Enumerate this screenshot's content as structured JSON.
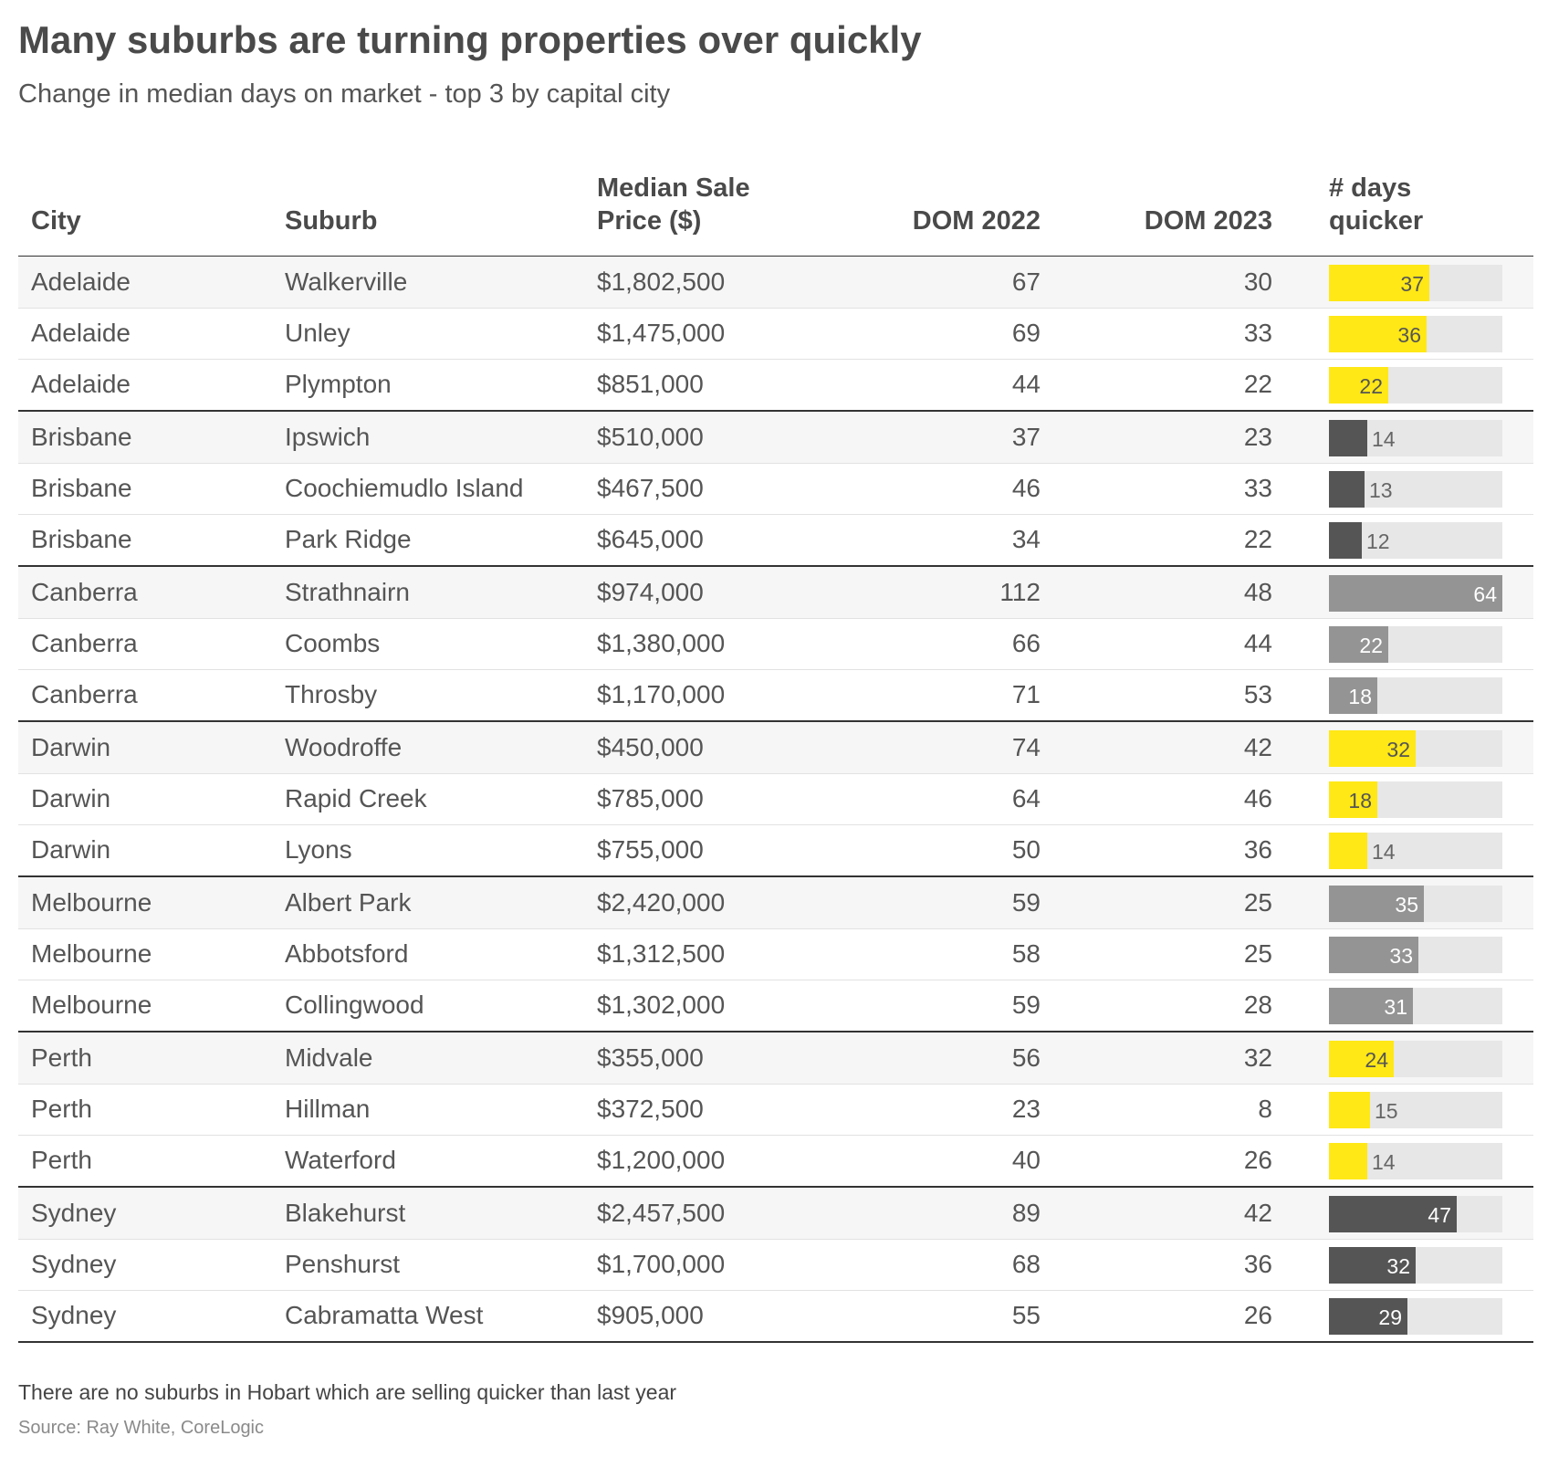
{
  "title": "Many suburbs are turning properties over quickly",
  "subtitle": "Change in median days on market - top 3 by capital city",
  "columns": {
    "city": "City",
    "suburb": "Suburb",
    "price_line1": "Median Sale",
    "price_line2": "Price ($)",
    "dom2022": "DOM 2022",
    "dom2023": "DOM 2023",
    "quicker_line1": "# days",
    "quicker_line2": "quicker"
  },
  "colors": {
    "Adelaide": "#ffe816",
    "Brisbane": "#555555",
    "Canberra": "#949494",
    "Darwin": "#ffe816",
    "Melbourne": "#949494",
    "Perth": "#ffe816",
    "Sydney": "#555555",
    "track": "#e7e7e7"
  },
  "note": "There are no suburbs in Hobart which are selling quicker than last year",
  "source": "Source: Ray White, CoreLogic",
  "chart_data": {
    "type": "table",
    "bar_column_max": 64,
    "rows": [
      {
        "city": "Adelaide",
        "suburb": "Walkerville",
        "price": "$1,802,500",
        "dom2022": "67",
        "dom2023": "30",
        "quicker": 37
      },
      {
        "city": "Adelaide",
        "suburb": "Unley",
        "price": "$1,475,000",
        "dom2022": "69",
        "dom2023": "33",
        "quicker": 36
      },
      {
        "city": "Adelaide",
        "suburb": "Plympton",
        "price": "$851,000",
        "dom2022": "44",
        "dom2023": "22",
        "quicker": 22
      },
      {
        "city": "Brisbane",
        "suburb": "Ipswich",
        "price": "$510,000",
        "dom2022": "37",
        "dom2023": "23",
        "quicker": 14
      },
      {
        "city": "Brisbane",
        "suburb": "Coochiemudlo Island",
        "price": "$467,500",
        "dom2022": "46",
        "dom2023": "33",
        "quicker": 13
      },
      {
        "city": "Brisbane",
        "suburb": "Park Ridge",
        "price": "$645,000",
        "dom2022": "34",
        "dom2023": "22",
        "quicker": 12
      },
      {
        "city": "Canberra",
        "suburb": "Strathnairn",
        "price": "$974,000",
        "dom2022": "112",
        "dom2023": "48",
        "quicker": 64
      },
      {
        "city": "Canberra",
        "suburb": "Coombs",
        "price": "$1,380,000",
        "dom2022": "66",
        "dom2023": "44",
        "quicker": 22
      },
      {
        "city": "Canberra",
        "suburb": "Throsby",
        "price": "$1,170,000",
        "dom2022": "71",
        "dom2023": "53",
        "quicker": 18
      },
      {
        "city": "Darwin",
        "suburb": "Woodroffe",
        "price": "$450,000",
        "dom2022": "74",
        "dom2023": "42",
        "quicker": 32
      },
      {
        "city": "Darwin",
        "suburb": "Rapid Creek",
        "price": "$785,000",
        "dom2022": "64",
        "dom2023": "46",
        "quicker": 18
      },
      {
        "city": "Darwin",
        "suburb": "Lyons",
        "price": "$755,000",
        "dom2022": "50",
        "dom2023": "36",
        "quicker": 14
      },
      {
        "city": "Melbourne",
        "suburb": "Albert Park",
        "price": "$2,420,000",
        "dom2022": "59",
        "dom2023": "25",
        "quicker": 35
      },
      {
        "city": "Melbourne",
        "suburb": "Abbotsford",
        "price": "$1,312,500",
        "dom2022": "58",
        "dom2023": "25",
        "quicker": 33
      },
      {
        "city": "Melbourne",
        "suburb": "Collingwood",
        "price": "$1,302,000",
        "dom2022": "59",
        "dom2023": "28",
        "quicker": 31
      },
      {
        "city": "Perth",
        "suburb": "Midvale",
        "price": "$355,000",
        "dom2022": "56",
        "dom2023": "32",
        "quicker": 24
      },
      {
        "city": "Perth",
        "suburb": "Hillman",
        "price": "$372,500",
        "dom2022": "23",
        "dom2023": "8",
        "quicker": 15
      },
      {
        "city": "Perth",
        "suburb": "Waterford",
        "price": "$1,200,000",
        "dom2022": "40",
        "dom2023": "26",
        "quicker": 14
      },
      {
        "city": "Sydney",
        "suburb": "Blakehurst",
        "price": "$2,457,500",
        "dom2022": "89",
        "dom2023": "42",
        "quicker": 47
      },
      {
        "city": "Sydney",
        "suburb": "Penshurst",
        "price": "$1,700,000",
        "dom2022": "68",
        "dom2023": "36",
        "quicker": 32
      },
      {
        "city": "Sydney",
        "suburb": "Cabramatta West",
        "price": "$905,000",
        "dom2022": "55",
        "dom2023": "26",
        "quicker": 29
      }
    ]
  }
}
